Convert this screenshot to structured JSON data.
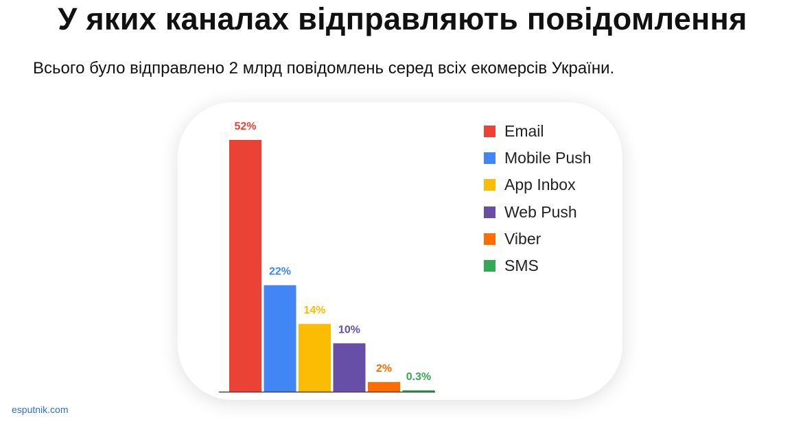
{
  "page": {
    "title": "У яких каналах відправляють повідомлення",
    "subtitle": "Всього було відправлено 2 млрд повідомлень серед всіх екомерсів України.",
    "footer": "esputnik.com"
  },
  "chart_data": {
    "type": "bar",
    "categories": [
      "Email",
      "Mobile Push",
      "App Inbox",
      "Web Push",
      "Viber",
      "SMS"
    ],
    "values": [
      52,
      22,
      14,
      10,
      2,
      0.3
    ],
    "value_labels": [
      "52%",
      "22%",
      "14%",
      "10%",
      "2%",
      "0.3%"
    ],
    "colors": [
      "#EA4335",
      "#4285F4",
      "#FBBC04",
      "#674EA7",
      "#FF6D01",
      "#34A853"
    ],
    "ylim": [
      0,
      52
    ],
    "grid": false,
    "legend_position": "top-right",
    "legend": [
      {
        "label": "Email",
        "color": "#EA4335"
      },
      {
        "label": "Mobile Push",
        "color": "#4285F4"
      },
      {
        "label": "App Inbox",
        "color": "#FBBC04"
      },
      {
        "label": "Web Push",
        "color": "#674EA7"
      },
      {
        "label": "Viber",
        "color": "#FF6D01"
      },
      {
        "label": "SMS",
        "color": "#34A853"
      }
    ]
  }
}
